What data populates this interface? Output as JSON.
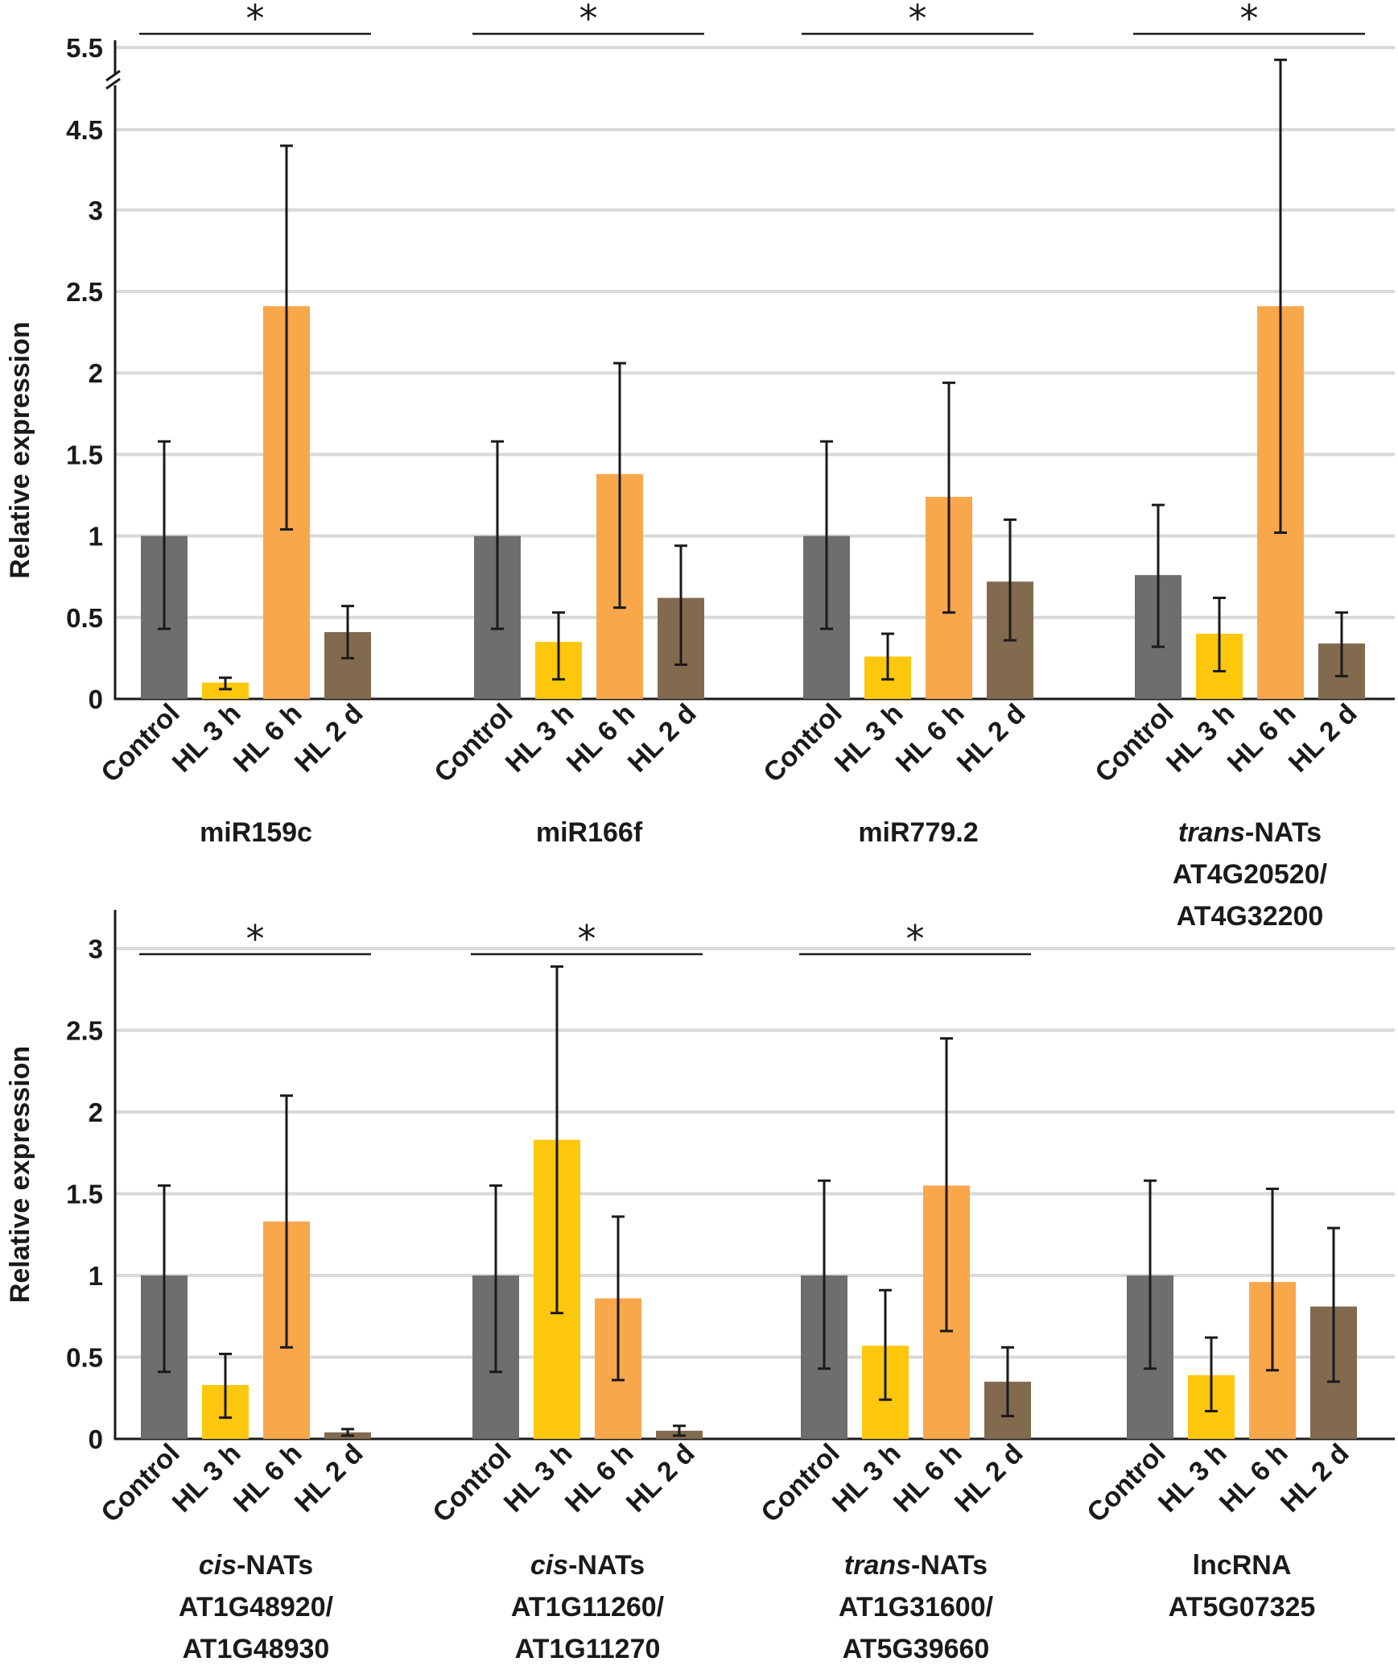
{
  "colors": {
    "Control": "#6d6e70",
    "HL 3 h": "#fdc70d",
    "HL 6 h": "#f8a74b",
    "HL 2 d": "#826a4f",
    "grid": "#d9d9d9",
    "axis": "#1a1a1a"
  },
  "chart_data": [
    {
      "type": "bar",
      "panel": "top",
      "ylabel": "Relative expression",
      "axis_break": {
        "from": 4.5,
        "to": 5.5
      },
      "yticks": [
        "0",
        "0.5",
        "1",
        "1.5",
        "2",
        "2.5",
        "3",
        "4.5",
        "5.5"
      ],
      "categories": [
        "Control",
        "HL 3 h",
        "HL 6 h",
        "HL 2 d"
      ],
      "groups": [
        {
          "label_lines": [
            "miR159c"
          ],
          "italic_prefix": "",
          "values": [
            1.0,
            0.1,
            2.41,
            0.41
          ],
          "errors": [
            [
              0.43,
              1.58
            ],
            [
              0.06,
              0.13
            ],
            [
              1.04,
              4.2
            ],
            [
              0.25,
              0.57
            ]
          ],
          "significance": "*"
        },
        {
          "label_lines": [
            "miR166f"
          ],
          "italic_prefix": "",
          "values": [
            1.0,
            0.35,
            1.38,
            0.62
          ],
          "errors": [
            [
              0.43,
              1.58
            ],
            [
              0.12,
              0.53
            ],
            [
              0.56,
              2.06
            ],
            [
              0.21,
              0.94
            ]
          ],
          "significance": "*"
        },
        {
          "label_lines": [
            "miR779.2"
          ],
          "italic_prefix": "",
          "values": [
            1.0,
            0.26,
            1.24,
            0.72
          ],
          "errors": [
            [
              0.43,
              1.58
            ],
            [
              0.12,
              0.4
            ],
            [
              0.53,
              1.94
            ],
            [
              0.36,
              1.1
            ]
          ],
          "significance": "*"
        },
        {
          "label_lines": [
            "-NATs",
            "AT4G20520/",
            "AT4G32200"
          ],
          "italic_prefix": "trans",
          "values": [
            0.76,
            0.4,
            2.41,
            0.34
          ],
          "errors": [
            [
              0.32,
              1.19
            ],
            [
              0.17,
              0.62
            ],
            [
              1.02,
              5.35
            ],
            [
              0.14,
              0.53
            ]
          ],
          "significance": "*"
        }
      ]
    },
    {
      "type": "bar",
      "panel": "bottom",
      "ylabel": "Relative expression",
      "ylim": [
        0,
        3.2
      ],
      "yticks": [
        "0",
        "0.5",
        "1",
        "1.5",
        "2",
        "2.5",
        "3"
      ],
      "categories": [
        "Control",
        "HL 3 h",
        "HL 6 h",
        "HL 2 d"
      ],
      "groups": [
        {
          "label_lines": [
            "-NATs",
            "AT1G48920/",
            "AT1G48930"
          ],
          "italic_prefix": "cis",
          "values": [
            1.0,
            0.33,
            1.33,
            0.04
          ],
          "errors": [
            [
              0.41,
              1.55
            ],
            [
              0.13,
              0.52
            ],
            [
              0.56,
              2.1
            ],
            [
              0.02,
              0.06
            ]
          ],
          "significance": "*"
        },
        {
          "label_lines": [
            "-NATs",
            "AT1G11260/",
            "AT1G11270"
          ],
          "italic_prefix": "cis",
          "values": [
            1.0,
            1.83,
            0.86,
            0.05
          ],
          "errors": [
            [
              0.41,
              1.55
            ],
            [
              0.77,
              2.89
            ],
            [
              0.36,
              1.36
            ],
            [
              0.02,
              0.08
            ]
          ],
          "significance": "*"
        },
        {
          "label_lines": [
            "-NATs",
            "AT1G31600/",
            "AT5G39660"
          ],
          "italic_prefix": "trans",
          "values": [
            1.0,
            0.57,
            1.55,
            0.35
          ],
          "errors": [
            [
              0.43,
              1.58
            ],
            [
              0.24,
              0.91
            ],
            [
              0.66,
              2.45
            ],
            [
              0.14,
              0.56
            ]
          ],
          "significance": "*"
        },
        {
          "label_lines": [
            "lncRNA",
            "AT5G07325"
          ],
          "italic_prefix": "",
          "values": [
            1.0,
            0.39,
            0.96,
            0.81
          ],
          "errors": [
            [
              0.43,
              1.58
            ],
            [
              0.17,
              0.62
            ],
            [
              0.42,
              1.53
            ],
            [
              0.35,
              1.29
            ]
          ],
          "significance": ""
        }
      ]
    }
  ]
}
